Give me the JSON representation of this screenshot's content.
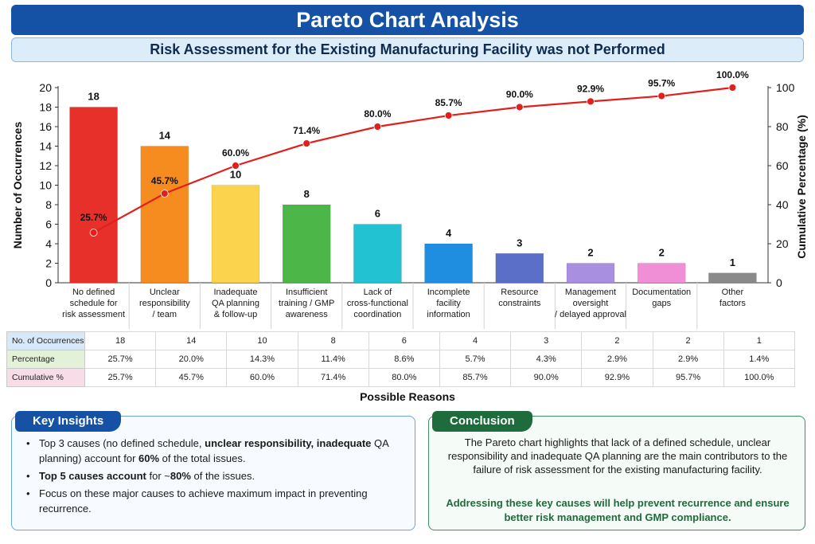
{
  "header": {
    "title": "Pareto Chart Analysis",
    "subtitle": "Risk Assessment for the Existing Manufacturing Facility was not Performed"
  },
  "colors": {
    "title_bg": "#1552a6",
    "line": "#e0201d",
    "bars": [
      "#e8302a",
      "#f68b1f",
      "#fcd34d",
      "#4cb748",
      "#22c2d2",
      "#1f8ee0",
      "#5b6fc9",
      "#a98fe0",
      "#f08fd6",
      "#8a8a8a"
    ]
  },
  "chart_data": {
    "type": "bar",
    "categories": [
      "No defined schedule for risk assessment",
      "Unclear responsibility / team",
      "Inadequate QA planning & follow-up",
      "Insufficient training / GMP awareness",
      "Lack of cross-functional coordination",
      "Incomplete facility information",
      "Resource constraints",
      "Management oversight / delayed approval",
      "Documentation gaps",
      "Other factors"
    ],
    "category_lines": [
      [
        "No defined",
        "schedule for",
        "risk assessment"
      ],
      [
        "Unclear",
        "responsibility",
        "/ team"
      ],
      [
        "Inadequate",
        "QA planning",
        "& follow-up"
      ],
      [
        "Insufficient",
        "training / GMP",
        "awareness"
      ],
      [
        "Lack of",
        "cross-functional",
        "coordination"
      ],
      [
        "Incomplete",
        "facility",
        "information"
      ],
      [
        "Resource",
        "constraints"
      ],
      [
        "Management",
        "oversight",
        "/ delayed approval"
      ],
      [
        "Documentation",
        "gaps"
      ],
      [
        "Other",
        "factors"
      ]
    ],
    "series": [
      {
        "name": "No. of Occurrences",
        "type": "bar",
        "axis": "left",
        "values": [
          18,
          14,
          10,
          8,
          6,
          4,
          3,
          2,
          2,
          1
        ]
      },
      {
        "name": "Cumulative %",
        "type": "line",
        "axis": "right",
        "values": [
          25.7,
          45.7,
          60.0,
          71.4,
          80.0,
          85.7,
          90.0,
          92.9,
          95.7,
          100.0
        ]
      }
    ],
    "line_labels": [
      "25.7%",
      "45.7%",
      "60.0%",
      "71.4%",
      "80.0%",
      "85.7%",
      "90.0%",
      "92.9%",
      "95.7%",
      "100.0%"
    ],
    "ylabel": "Number of Occurrences",
    "y2label": "Cumulative Percentage (%)",
    "xlabel": "Possible Reasons",
    "ylim": [
      0,
      20
    ],
    "yticks": [
      0,
      2,
      4,
      6,
      8,
      10,
      12,
      14,
      16,
      18,
      20
    ],
    "y2lim": [
      0,
      100
    ],
    "y2ticks": [
      0,
      20,
      40,
      60,
      80,
      100
    ],
    "grid": false
  },
  "table": {
    "rows": [
      {
        "label": "No. of Occurrences",
        "cells": [
          "18",
          "14",
          "10",
          "8",
          "6",
          "4",
          "3",
          "2",
          "2",
          "1"
        ]
      },
      {
        "label": "Percentage",
        "cells": [
          "25.7%",
          "20.0%",
          "14.3%",
          "11.4%",
          "8.6%",
          "5.7%",
          "4.3%",
          "2.9%",
          "2.9%",
          "1.4%"
        ]
      },
      {
        "label": "Cumulative %",
        "cells": [
          "25.7%",
          "45.7%",
          "60.0%",
          "71.4%",
          "80.0%",
          "85.7%",
          "90.0%",
          "92.9%",
          "95.7%",
          "100.0%"
        ]
      }
    ]
  },
  "insights": {
    "heading": "Key Insights",
    "items": [
      {
        "parts": [
          {
            "t": "Top 3 causes (no defined schedule, ",
            "b": false
          },
          {
            "t": "unclear  responsibility, inadequate",
            "b": true
          },
          {
            "t": " QA planning) account for ",
            "b": false
          },
          {
            "t": "60%",
            "b": true
          },
          {
            "t": " of the total issues.",
            "b": false
          }
        ]
      },
      {
        "parts": [
          {
            "t": "Top 5 causes account",
            "b": true
          },
          {
            "t": " for ~",
            "b": false
          },
          {
            "t": "80%",
            "b": true
          },
          {
            "t": " of the issues.",
            "b": false
          }
        ]
      },
      {
        "parts": [
          {
            "t": "Focus on these major causes to achieve maximum impact in preventing recurrence.",
            "b": false
          }
        ]
      }
    ]
  },
  "conclusion": {
    "heading": "Conclusion",
    "text": "The Pareto chart highlights that lack of a defined schedule, unclear responsibility and inadequate QA planning are the main contributors to the failure of risk assessment for the existing manufacturing facility.",
    "emphasis": "Addressing these key causes will help prevent recurrence and ensure better risk management and GMP compliance."
  }
}
